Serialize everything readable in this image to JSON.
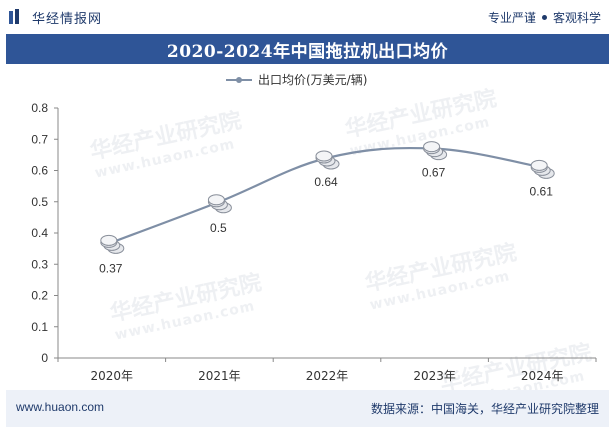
{
  "header": {
    "brand": "华经情报网",
    "tag_left": "专业严谨",
    "tag_right": "客观科学"
  },
  "title": "2020-2024年中国拖拉机出口均价",
  "watermark": {
    "cn": "华经产业研究院",
    "en": "www.huaon.com"
  },
  "footer": {
    "left": "www.huaon.com",
    "right": "数据来源：中国海关，华经产业研究院整理"
  },
  "colors": {
    "line": "#7f8fa6",
    "title_bg": "#2f5597",
    "footer_bg": "#edf1f8",
    "brand": "#1f3a6b"
  },
  "chart_data": {
    "type": "line",
    "categories": [
      "2020年",
      "2021年",
      "2022年",
      "2023年",
      "2024年"
    ],
    "series": [
      {
        "name": "出口均价(万美元/辆)",
        "values": [
          0.37,
          0.5,
          0.64,
          0.67,
          0.61
        ]
      }
    ],
    "data_labels": [
      "0.37",
      "0.5",
      "0.64",
      "0.67",
      "0.61"
    ],
    "ylim": [
      0,
      0.8
    ],
    "yticks": [
      "0",
      "0.1",
      "0.2",
      "0.3",
      "0.4",
      "0.5",
      "0.6",
      "0.7",
      "0.8"
    ],
    "legend_position": "top",
    "grid": false,
    "smooth": true
  }
}
